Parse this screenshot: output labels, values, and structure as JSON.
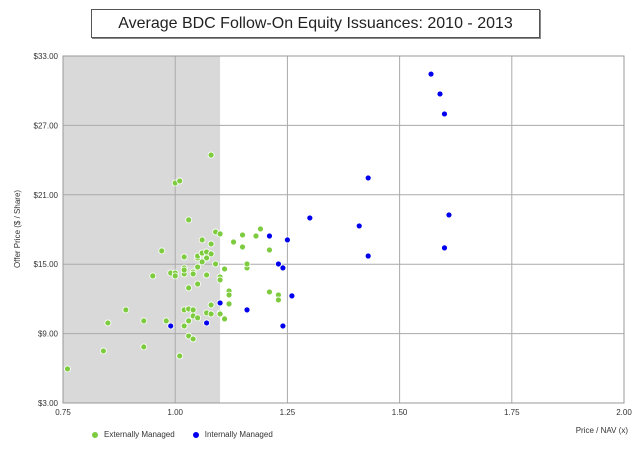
{
  "chart_data": {
    "type": "scatter",
    "title": "Average BDC Follow-On Equity Issuances: 2010 - 2013",
    "xlabel": "Price / NAV (x)",
    "ylabel": "Offer Price ($ / Share)",
    "xlim": [
      0.75,
      2.0
    ],
    "ylim": [
      3.0,
      33.0
    ],
    "x_ticks": [
      "0.75",
      "1.00",
      "1.25",
      "1.50",
      "1.75",
      "2.00"
    ],
    "y_ticks": [
      "$3.00",
      "$9.00",
      "$15.00",
      "$21.00",
      "$27.00",
      "$33.00"
    ],
    "grid": true,
    "shaded_region": {
      "x_from": 0.75,
      "x_to": 1.1,
      "color": "#d9d9d9"
    },
    "legend_position": "bottom-left",
    "series": [
      {
        "name": "Externally Managed",
        "color": "#7dcb3e",
        "points": [
          [
            0.76,
            5.95
          ],
          [
            0.84,
            7.5
          ],
          [
            0.85,
            9.92
          ],
          [
            0.89,
            11.05
          ],
          [
            0.93,
            10.1
          ],
          [
            0.93,
            7.85
          ],
          [
            0.98,
            10.1
          ],
          [
            1.01,
            7.07
          ],
          [
            1.0,
            22.02
          ],
          [
            1.01,
            22.2
          ],
          [
            1.08,
            24.44
          ],
          [
            1.03,
            18.83
          ],
          [
            0.97,
            16.15
          ],
          [
            0.95,
            13.99
          ],
          [
            0.99,
            14.24
          ],
          [
            1.0,
            14.24
          ],
          [
            1.0,
            13.99
          ],
          [
            1.02,
            14.16
          ],
          [
            1.02,
            14.68
          ],
          [
            1.02,
            14.5
          ],
          [
            1.02,
            15.63
          ],
          [
            1.04,
            14.33
          ],
          [
            1.04,
            14.16
          ],
          [
            1.05,
            15.54
          ],
          [
            1.05,
            15.71
          ],
          [
            1.06,
            15.89
          ],
          [
            1.06,
            15.97
          ],
          [
            1.07,
            16.06
          ],
          [
            1.08,
            15.89
          ],
          [
            1.07,
            15.54
          ],
          [
            1.06,
            15.2
          ],
          [
            1.05,
            14.76
          ],
          [
            1.09,
            15.02
          ],
          [
            1.07,
            14.07
          ],
          [
            1.06,
            17.1
          ],
          [
            1.08,
            16.75
          ],
          [
            1.09,
            17.79
          ],
          [
            1.1,
            17.62
          ],
          [
            1.13,
            16.92
          ],
          [
            1.15,
            16.49
          ],
          [
            1.15,
            17.53
          ],
          [
            1.18,
            17.44
          ],
          [
            1.19,
            18.05
          ],
          [
            1.21,
            16.23
          ],
          [
            1.11,
            14.59
          ],
          [
            1.1,
            13.9
          ],
          [
            1.1,
            13.64
          ],
          [
            1.16,
            14.68
          ],
          [
            1.16,
            15.02
          ],
          [
            1.03,
            12.95
          ],
          [
            1.05,
            13.29
          ],
          [
            1.12,
            12.69
          ],
          [
            1.12,
            12.34
          ],
          [
            1.12,
            11.57
          ],
          [
            1.08,
            11.48
          ],
          [
            1.02,
            11.05
          ],
          [
            1.03,
            11.13
          ],
          [
            1.04,
            11.05
          ],
          [
            1.07,
            10.79
          ],
          [
            1.08,
            10.7
          ],
          [
            1.1,
            10.79
          ],
          [
            1.11,
            10.27
          ],
          [
            1.1,
            10.7
          ],
          [
            1.04,
            10.53
          ],
          [
            1.05,
            10.36
          ],
          [
            1.03,
            10.1
          ],
          [
            1.02,
            9.66
          ],
          [
            1.03,
            8.8
          ],
          [
            1.04,
            8.54
          ],
          [
            1.21,
            12.6
          ],
          [
            1.23,
            12.34
          ],
          [
            1.23,
            11.91
          ]
        ]
      },
      {
        "name": "Internally Managed",
        "color": "#0000ee",
        "points": [
          [
            0.99,
            9.66
          ],
          [
            1.07,
            9.92
          ],
          [
            1.1,
            11.65
          ],
          [
            1.16,
            11.05
          ],
          [
            1.24,
            9.66
          ],
          [
            1.26,
            12.26
          ],
          [
            1.21,
            17.44
          ],
          [
            1.25,
            17.1
          ],
          [
            1.23,
            15.02
          ],
          [
            1.24,
            14.68
          ],
          [
            1.3,
            19.0
          ],
          [
            1.41,
            18.31
          ],
          [
            1.43,
            15.71
          ],
          [
            1.43,
            22.46
          ],
          [
            1.6,
            16.41
          ],
          [
            1.61,
            19.26
          ],
          [
            1.57,
            31.44
          ],
          [
            1.59,
            29.72
          ],
          [
            1.6,
            27.99
          ]
        ]
      }
    ]
  }
}
